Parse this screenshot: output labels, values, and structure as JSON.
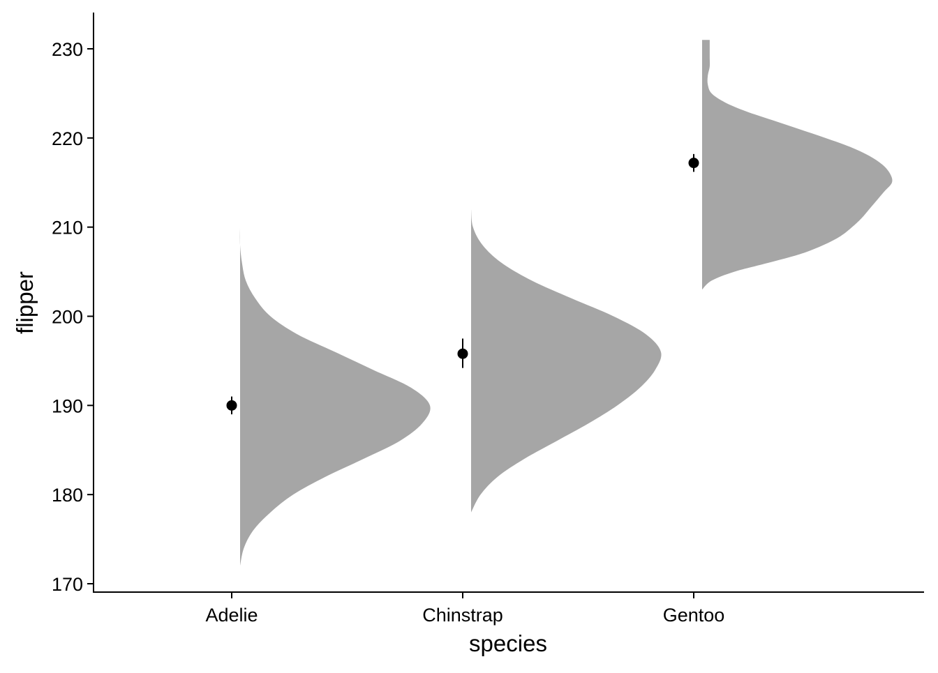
{
  "chart_data": {
    "type": "half-violin with mean and error bars",
    "title": "",
    "xlabel": "species",
    "ylabel": "flipper",
    "categories": [
      "Adelie",
      "Chinstrap",
      "Gentoo"
    ],
    "ylim": [
      169,
      234
    ],
    "yticks": [
      170,
      180,
      190,
      200,
      210,
      220,
      230
    ],
    "grid": false,
    "legend": "none",
    "violin_color": "#a6a6a6",
    "point_color": "#000000",
    "series": [
      {
        "category": "Adelie",
        "mean": 190.0,
        "error_low": 189.0,
        "error_high": 191.0,
        "min": 172,
        "max": 210,
        "density_profile": [
          [
            172,
            0.0
          ],
          [
            174,
            0.02
          ],
          [
            176,
            0.07
          ],
          [
            178,
            0.16
          ],
          [
            180,
            0.28
          ],
          [
            182,
            0.45
          ],
          [
            184,
            0.65
          ],
          [
            186,
            0.84
          ],
          [
            188,
            0.96
          ],
          [
            190,
            1.0
          ],
          [
            192,
            0.9
          ],
          [
            194,
            0.7
          ],
          [
            196,
            0.5
          ],
          [
            198,
            0.3
          ],
          [
            200,
            0.16
          ],
          [
            202,
            0.08
          ],
          [
            204,
            0.03
          ],
          [
            206,
            0.01
          ],
          [
            208,
            0.0
          ],
          [
            210,
            0.0
          ]
        ]
      },
      {
        "category": "Chinstrap",
        "mean": 195.8,
        "error_low": 194.2,
        "error_high": 197.5,
        "min": 178,
        "max": 212,
        "density_profile": [
          [
            178,
            0.0
          ],
          [
            180,
            0.05
          ],
          [
            182,
            0.14
          ],
          [
            184,
            0.28
          ],
          [
            186,
            0.45
          ],
          [
            188,
            0.62
          ],
          [
            190,
            0.77
          ],
          [
            192,
            0.89
          ],
          [
            194,
            0.97
          ],
          [
            196,
            1.0
          ],
          [
            198,
            0.92
          ],
          [
            200,
            0.75
          ],
          [
            202,
            0.53
          ],
          [
            204,
            0.32
          ],
          [
            206,
            0.16
          ],
          [
            208,
            0.06
          ],
          [
            210,
            0.01
          ],
          [
            212,
            0.0
          ]
        ]
      },
      {
        "category": "Gentoo",
        "mean": 217.2,
        "error_low": 216.2,
        "error_high": 218.2,
        "min": 203,
        "max": 231,
        "density_profile": [
          [
            203,
            0.0
          ],
          [
            204,
            0.05
          ],
          [
            205,
            0.17
          ],
          [
            206,
            0.35
          ],
          [
            207,
            0.52
          ],
          [
            208,
            0.64
          ],
          [
            209,
            0.73
          ],
          [
            210,
            0.79
          ],
          [
            211,
            0.84
          ],
          [
            212,
            0.88
          ],
          [
            213,
            0.92
          ],
          [
            214,
            0.96
          ],
          [
            215,
            1.0
          ],
          [
            216,
            0.99
          ],
          [
            217,
            0.95
          ],
          [
            218,
            0.88
          ],
          [
            219,
            0.78
          ],
          [
            220,
            0.65
          ],
          [
            221,
            0.51
          ],
          [
            222,
            0.37
          ],
          [
            223,
            0.23
          ],
          [
            224,
            0.12
          ],
          [
            225,
            0.05
          ],
          [
            226,
            0.03
          ],
          [
            227,
            0.03
          ],
          [
            228,
            0.04
          ],
          [
            229,
            0.04
          ],
          [
            230,
            0.04
          ],
          [
            231,
            0.04
          ]
        ]
      }
    ]
  }
}
